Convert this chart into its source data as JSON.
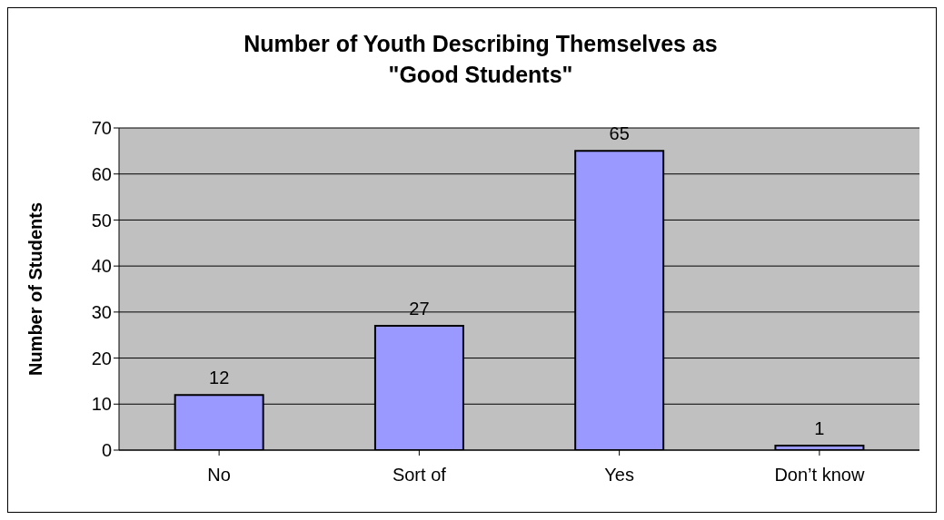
{
  "chart_data": {
    "type": "bar",
    "title": "Number of Youth Describing Themselves as \"Good Students\"",
    "ylabel": "Number of Students",
    "categories": [
      "No",
      "Sort of",
      "Yes",
      "Don’t know"
    ],
    "values": [
      12,
      27,
      65,
      1
    ],
    "color": "#9999ff",
    "ylim": [
      0,
      70
    ],
    "yticks": [
      0,
      10,
      20,
      30,
      40,
      50,
      60,
      70
    ],
    "grid": "y",
    "data_labels": true
  }
}
